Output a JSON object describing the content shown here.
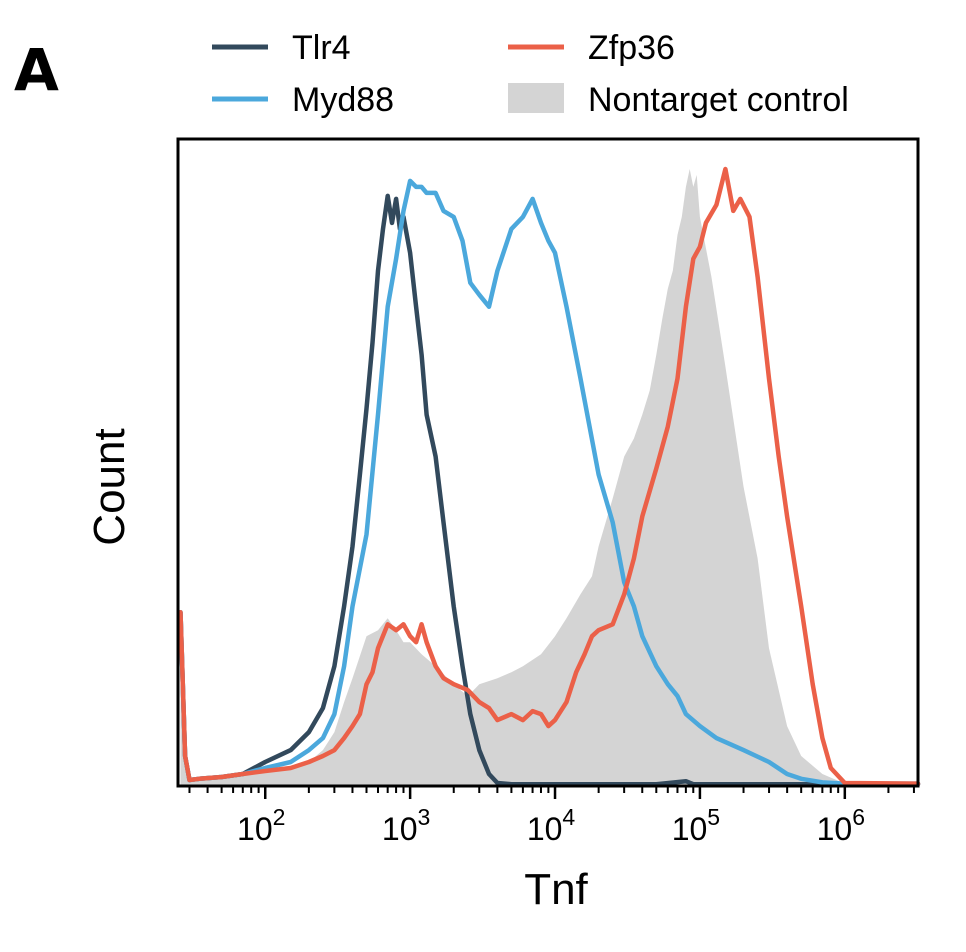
{
  "panel_label": "A",
  "colors": {
    "tlr4": "#32495c",
    "myd88": "#4ba8dc",
    "zfp36": "#eb6048",
    "control": "#d4d4d4"
  },
  "chart_data": {
    "type": "area",
    "title": "",
    "xlabel": "Tnf",
    "ylabel": "Count",
    "xscale": "log",
    "xlim": [
      25,
      3200000
    ],
    "ylim": [
      0,
      1.08
    ],
    "x_ticks": [
      {
        "base": "10",
        "exp": "2",
        "value": 100
      },
      {
        "base": "10",
        "exp": "3",
        "value": 1000
      },
      {
        "base": "10",
        "exp": "4",
        "value": 10000
      },
      {
        "base": "10",
        "exp": "5",
        "value": 100000
      },
      {
        "base": "10",
        "exp": "6",
        "value": 1000000
      }
    ],
    "legend": {
      "placement": "top",
      "columns": 2
    },
    "series": [
      {
        "name": "Tlr4",
        "key": "tlr4",
        "style": "line",
        "x": [
          26,
          28,
          30,
          35,
          50,
          70,
          100,
          150,
          200,
          250,
          300,
          350,
          400,
          450,
          500,
          550,
          600,
          650,
          700,
          750,
          800,
          850,
          900,
          1000,
          1100,
          1200,
          1300,
          1500,
          1700,
          2000,
          2300,
          2600,
          3000,
          3500,
          4000,
          5000,
          10000,
          50000,
          80000,
          90000,
          100000,
          3200000
        ],
        "y": [
          0.29,
          0.05,
          0.01,
          0.012,
          0.015,
          0.02,
          0.04,
          0.06,
          0.09,
          0.13,
          0.2,
          0.3,
          0.4,
          0.52,
          0.63,
          0.74,
          0.86,
          0.93,
          0.985,
          0.94,
          0.98,
          0.93,
          0.95,
          0.89,
          0.8,
          0.72,
          0.62,
          0.55,
          0.44,
          0.3,
          0.2,
          0.12,
          0.06,
          0.02,
          0.005,
          0.003,
          0.003,
          0.003,
          0.008,
          0.003,
          0.003,
          0.003
        ]
      },
      {
        "name": "Myd88",
        "key": "myd88",
        "style": "line",
        "x": [
          26,
          28,
          30,
          35,
          50,
          70,
          100,
          150,
          200,
          250,
          300,
          350,
          400,
          500,
          600,
          700,
          800,
          900,
          1000,
          1100,
          1200,
          1300,
          1500,
          1700,
          2000,
          2300,
          2600,
          3000,
          3500,
          4000,
          5000,
          6000,
          7000,
          8000,
          9000,
          10000,
          12000,
          15000,
          20000,
          25000,
          30000,
          35000,
          40000,
          50000,
          60000,
          70000,
          80000,
          100000,
          130000,
          200000,
          300000,
          400000,
          500000,
          700000,
          1000000,
          3200000
        ],
        "y": [
          0.29,
          0.05,
          0.01,
          0.012,
          0.015,
          0.02,
          0.03,
          0.04,
          0.06,
          0.08,
          0.12,
          0.2,
          0.3,
          0.42,
          0.62,
          0.8,
          0.88,
          0.96,
          1.01,
          1.0,
          1.0,
          0.99,
          0.99,
          0.96,
          0.95,
          0.91,
          0.84,
          0.82,
          0.8,
          0.86,
          0.93,
          0.95,
          0.98,
          0.94,
          0.91,
          0.89,
          0.8,
          0.68,
          0.52,
          0.44,
          0.34,
          0.3,
          0.25,
          0.2,
          0.17,
          0.15,
          0.12,
          0.1,
          0.08,
          0.06,
          0.04,
          0.02,
          0.012,
          0.006,
          0.004,
          0.004
        ]
      },
      {
        "name": "Zfp36",
        "key": "zfp36",
        "style": "line",
        "x": [
          26,
          28,
          30,
          35,
          50,
          70,
          100,
          150,
          200,
          250,
          300,
          350,
          400,
          450,
          500,
          550,
          600,
          700,
          800,
          900,
          1000,
          1100,
          1200,
          1300,
          1500,
          1700,
          2000,
          2500,
          3000,
          3500,
          4000,
          5000,
          6000,
          7000,
          8000,
          9000,
          10000,
          12000,
          14000,
          16000,
          18000,
          20000,
          25000,
          30000,
          35000,
          40000,
          50000,
          60000,
          70000,
          80000,
          90000,
          100000,
          110000,
          130000,
          150000,
          170000,
          190000,
          220000,
          250000,
          300000,
          350000,
          400000,
          500000,
          600000,
          700000,
          800000,
          1000000,
          3200000
        ],
        "y": [
          0.29,
          0.05,
          0.01,
          0.012,
          0.015,
          0.02,
          0.025,
          0.03,
          0.04,
          0.05,
          0.06,
          0.08,
          0.1,
          0.12,
          0.17,
          0.19,
          0.23,
          0.27,
          0.26,
          0.27,
          0.25,
          0.24,
          0.27,
          0.24,
          0.2,
          0.18,
          0.17,
          0.16,
          0.14,
          0.13,
          0.11,
          0.12,
          0.11,
          0.125,
          0.12,
          0.1,
          0.11,
          0.14,
          0.19,
          0.22,
          0.25,
          0.26,
          0.27,
          0.32,
          0.38,
          0.45,
          0.53,
          0.6,
          0.68,
          0.8,
          0.88,
          0.9,
          0.94,
          0.97,
          1.03,
          0.96,
          0.98,
          0.95,
          0.85,
          0.68,
          0.55,
          0.45,
          0.3,
          0.17,
          0.08,
          0.03,
          0.005,
          0.004
        ]
      },
      {
        "name": "Nontarget control",
        "key": "control",
        "style": "fill",
        "x": [
          26,
          28,
          30,
          35,
          50,
          70,
          100,
          150,
          200,
          250,
          300,
          350,
          400,
          500,
          600,
          700,
          800,
          900,
          1000,
          1200,
          1500,
          2000,
          2500,
          3000,
          4000,
          5000,
          6000,
          8000,
          10000,
          12000,
          15000,
          18000,
          20000,
          25000,
          30000,
          35000,
          40000,
          45000,
          50000,
          55000,
          60000,
          65000,
          70000,
          75000,
          80000,
          85000,
          90000,
          95000,
          100000,
          120000,
          150000,
          200000,
          250000,
          300000,
          400000,
          500000,
          700000,
          1000000,
          3200000
        ],
        "y": [
          0.29,
          0.05,
          0.01,
          0.012,
          0.015,
          0.02,
          0.025,
          0.03,
          0.04,
          0.06,
          0.09,
          0.14,
          0.18,
          0.25,
          0.26,
          0.28,
          0.26,
          0.24,
          0.24,
          0.22,
          0.2,
          0.17,
          0.15,
          0.17,
          0.18,
          0.19,
          0.2,
          0.22,
          0.25,
          0.28,
          0.32,
          0.35,
          0.4,
          0.48,
          0.55,
          0.58,
          0.62,
          0.66,
          0.72,
          0.78,
          0.83,
          0.86,
          0.92,
          0.95,
          1.0,
          1.03,
          1.0,
          1.02,
          0.95,
          0.85,
          0.7,
          0.5,
          0.38,
          0.23,
          0.1,
          0.05,
          0.02,
          0.004,
          0.004
        ]
      }
    ]
  }
}
